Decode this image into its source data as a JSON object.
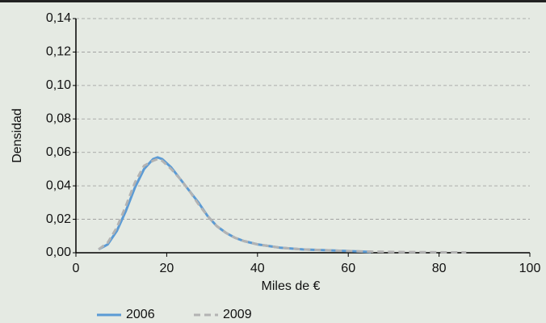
{
  "chart_data": {
    "type": "line",
    "x_label": "Miles de €",
    "y_label": "Densidad",
    "x": [
      5,
      7,
      9,
      11,
      13,
      15,
      17,
      18,
      19,
      21,
      23,
      25,
      27,
      29,
      31,
      33,
      35,
      37,
      40,
      45,
      50,
      55,
      60,
      65,
      70,
      75,
      80,
      86
    ],
    "series": [
      {
        "name": "2006",
        "color": "#5b9bd5",
        "dash": false,
        "values": [
          0.002,
          0.005,
          0.013,
          0.025,
          0.039,
          0.05,
          0.056,
          0.057,
          0.056,
          0.051,
          0.044,
          0.037,
          0.03,
          0.022,
          0.016,
          0.012,
          0.009,
          0.007,
          0.005,
          0.003,
          0.002,
          0.0015,
          0.001,
          0.0005,
          null,
          null,
          null,
          null
        ]
      },
      {
        "name": "2009",
        "color": "#b3b3b3",
        "dash": true,
        "values": [
          0.002,
          0.006,
          0.015,
          0.028,
          0.042,
          0.052,
          0.055,
          0.056,
          0.055,
          0.05,
          0.044,
          0.037,
          0.029,
          0.022,
          0.016,
          0.012,
          0.009,
          0.007,
          0.005,
          0.003,
          0.002,
          0.0015,
          0.001,
          0.0007,
          0.0005,
          0.0004,
          0.0003,
          0.0002
        ]
      }
    ],
    "xlim": [
      0,
      100
    ],
    "xticks": [
      0,
      20,
      40,
      60,
      80,
      100
    ],
    "ylim": [
      0,
      0.14
    ],
    "yticks": [
      {
        "value": 0,
        "label": "0,00"
      },
      {
        "value": 0.02,
        "label": "0,02"
      },
      {
        "value": 0.04,
        "label": "0,04"
      },
      {
        "value": 0.06,
        "label": "0,06"
      },
      {
        "value": 0.08,
        "label": "0,08"
      },
      {
        "value": 0.1,
        "label": "0,10"
      },
      {
        "value": 0.12,
        "label": "0,12"
      },
      {
        "value": 0.14,
        "label": "0,14"
      }
    ],
    "grid": true
  }
}
